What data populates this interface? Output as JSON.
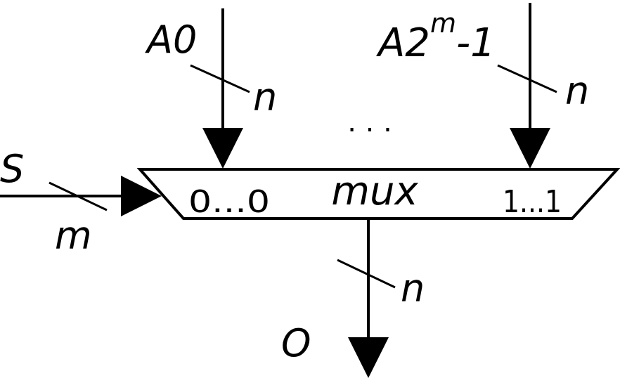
{
  "diagram": {
    "block_label": "mux",
    "input_first": {
      "label": "A0",
      "width": "n"
    },
    "input_last": {
      "label_base": "A2",
      "label_superscript": "m",
      "label_suffix": "-1",
      "width": "n"
    },
    "ellipsis": ". . .",
    "select": {
      "label": "S",
      "width": "m"
    },
    "output": {
      "label": "O",
      "width": "n"
    },
    "index_first": "0...0",
    "index_last": "1...1"
  }
}
